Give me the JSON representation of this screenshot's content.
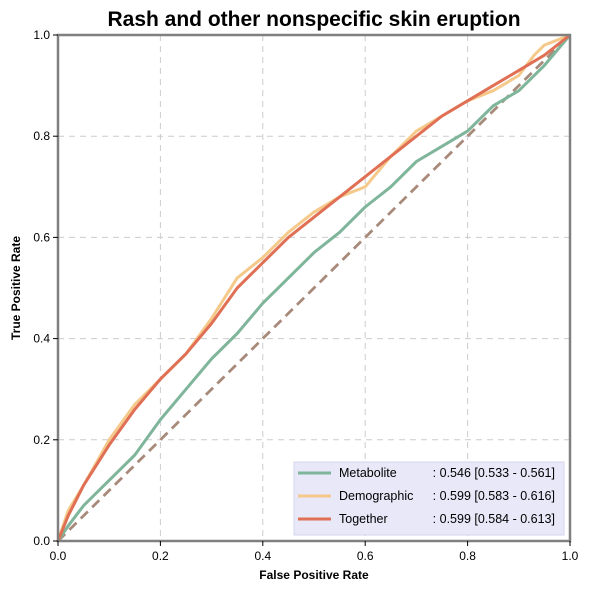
{
  "chart_data": {
    "type": "line",
    "title": "Rash and other nonspecific skin eruption",
    "xlabel": "False Positive Rate",
    "ylabel": "True Positive Rate",
    "xlim": [
      0,
      1
    ],
    "ylim": [
      0,
      1
    ],
    "xticks": [
      "0.0",
      "0.2",
      "0.4",
      "0.6",
      "0.8",
      "1.0"
    ],
    "yticks": [
      "0.0",
      "0.2",
      "0.4",
      "0.6",
      "0.8",
      "1.0"
    ],
    "grid": true,
    "legend_position": "bottom-right",
    "diagonal": {
      "color": "#a88a7a",
      "x": [
        0,
        1
      ],
      "y": [
        0,
        1
      ]
    },
    "series": [
      {
        "name": "Metabolite",
        "legend_name": "Metabolite",
        "legend_value": ": 0.546 [0.533 - 0.561]",
        "color": "#7fb59a",
        "x": [
          0,
          0.02,
          0.05,
          0.1,
          0.15,
          0.2,
          0.25,
          0.3,
          0.35,
          0.4,
          0.45,
          0.5,
          0.55,
          0.6,
          0.65,
          0.7,
          0.75,
          0.8,
          0.85,
          0.9,
          0.95,
          1.0
        ],
        "y": [
          0,
          0.03,
          0.07,
          0.12,
          0.17,
          0.24,
          0.3,
          0.36,
          0.41,
          0.47,
          0.52,
          0.57,
          0.61,
          0.66,
          0.7,
          0.75,
          0.78,
          0.81,
          0.86,
          0.89,
          0.94,
          1.0
        ]
      },
      {
        "name": "Demographic",
        "legend_name": "Demographic",
        "legend_value": ": 0.599 [0.583 - 0.616]",
        "color": "#f5c98a",
        "x": [
          0,
          0.02,
          0.05,
          0.1,
          0.15,
          0.2,
          0.25,
          0.3,
          0.35,
          0.4,
          0.45,
          0.5,
          0.55,
          0.6,
          0.65,
          0.7,
          0.75,
          0.8,
          0.85,
          0.9,
          0.93,
          0.95,
          1.0
        ],
        "y": [
          0,
          0.06,
          0.11,
          0.2,
          0.27,
          0.32,
          0.37,
          0.44,
          0.52,
          0.56,
          0.61,
          0.65,
          0.68,
          0.7,
          0.76,
          0.81,
          0.84,
          0.87,
          0.89,
          0.92,
          0.96,
          0.98,
          1.0
        ]
      },
      {
        "name": "Together",
        "legend_name": "Together",
        "legend_value": ": 0.599 [0.584 - 0.613]",
        "color": "#e07055",
        "x": [
          0,
          0.02,
          0.05,
          0.1,
          0.15,
          0.2,
          0.25,
          0.3,
          0.35,
          0.4,
          0.45,
          0.5,
          0.55,
          0.6,
          0.65,
          0.7,
          0.75,
          0.8,
          0.85,
          0.9,
          0.95,
          1.0
        ],
        "y": [
          0,
          0.05,
          0.11,
          0.19,
          0.26,
          0.32,
          0.37,
          0.43,
          0.5,
          0.55,
          0.6,
          0.64,
          0.68,
          0.72,
          0.76,
          0.8,
          0.84,
          0.87,
          0.9,
          0.93,
          0.96,
          1.0
        ]
      }
    ]
  }
}
